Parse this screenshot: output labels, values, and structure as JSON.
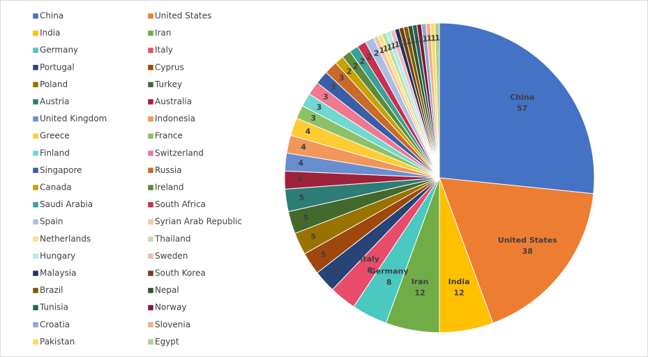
{
  "chart_data": {
    "type": "pie",
    "categories": [
      "China",
      "United States",
      "India",
      "Iran",
      "Germany",
      "Italy",
      "Portugal",
      "Cyprus",
      "Poland",
      "Turkey",
      "Austria",
      "Australia",
      "United Kingdom",
      "Indonesia",
      "Greece",
      "France",
      "Finland",
      "Switzerland",
      "Singapore",
      "Russia",
      "Canada",
      "Ireland",
      "Saudi Arabia",
      "South Africa",
      "Spain",
      "Syrian Arab Republic",
      "Netherlands",
      "Thailand",
      "Hungary",
      "Sweden",
      "Malaysia",
      "South Korea",
      "Brazil",
      "Nepal",
      "Tunisia",
      "Norway",
      "Croatia",
      "Slovenia",
      "Pakistan",
      "Egypt"
    ],
    "values": [
      57,
      38,
      12,
      12,
      8,
      6,
      5,
      5,
      5,
      5,
      5,
      4,
      4,
      4,
      4,
      3,
      3,
      3,
      3,
      3,
      2,
      2,
      2,
      2,
      2,
      1,
      1,
      1,
      1,
      1,
      1,
      1,
      1,
      1,
      1,
      1,
      1,
      1,
      1,
      1
    ],
    "colors": [
      "#4472c4",
      "#ed7d31",
      "#ffc000",
      "#70ad47",
      "#4bc8c0",
      "#e84c6a",
      "#264478",
      "#9e480e",
      "#997300",
      "#43682b",
      "#2e7c76",
      "#a0213a",
      "#698ed0",
      "#f1975a",
      "#ffcd33",
      "#8cc168",
      "#6fd8d0",
      "#f07890",
      "#3a5fa8",
      "#c86a2a",
      "#c8a000",
      "#5a8a3a",
      "#3aa098",
      "#c83050",
      "#a9bfe6",
      "#f6c5a0",
      "#ffe08a",
      "#bfe0a8",
      "#b0ece8",
      "#f5b5c2",
      "#1d3560",
      "#7a3a0e",
      "#7a5c00",
      "#34522a",
      "#24635e",
      "#801a2e",
      "#8aa8dc",
      "#f4b083",
      "#ffd966",
      "#a9d18e"
    ],
    "legend": "left"
  }
}
